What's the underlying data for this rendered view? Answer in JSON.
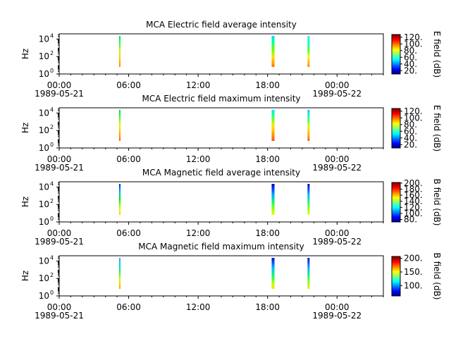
{
  "chart_data": [
    {
      "type": "heatmap",
      "title": "MCA  Electric field average intensity",
      "ylabel": "Hz",
      "y_scale": "log",
      "ylim": [
        1,
        40000
      ],
      "yticks": [
        {
          "v": 1,
          "b": "10",
          "e": "0"
        },
        {
          "v": 100,
          "b": "10",
          "e": "2"
        },
        {
          "v": 10000,
          "b": "10",
          "e": "4"
        }
      ],
      "xlim": [
        0,
        28
      ],
      "xticks": [
        {
          "v": 0,
          "label": "00:00",
          "date": "1989-05-21"
        },
        {
          "v": 6,
          "label": "06:00",
          "date": ""
        },
        {
          "v": 12,
          "label": "12:00",
          "date": ""
        },
        {
          "v": 18,
          "label": "18:00",
          "date": ""
        },
        {
          "v": 24,
          "label": "00:00",
          "date": "1989-05-22"
        }
      ],
      "colorbar": {
        "label": "E field (dB)",
        "min": 10,
        "max": 128,
        "ticks": [
          20,
          40,
          60,
          80,
          100,
          120
        ],
        "tick_labels": [
          "20.",
          "40.",
          "60.",
          "80.",
          "100.",
          "120."
        ]
      },
      "bursts": [
        {
          "start": 5.17,
          "end": 5.3,
          "colors": [
            "#ff8800",
            "#ffb000",
            "#ffd400",
            "#c8ff00",
            "#60ff20",
            "#20f080",
            "#00e060"
          ]
        },
        {
          "start": 18.35,
          "end": 18.6,
          "colors": [
            "#ff7000",
            "#ffb000",
            "#ffe000",
            "#80ff00",
            "#40ff40",
            "#00ffa0",
            "#00e0ff"
          ]
        },
        {
          "start": 21.45,
          "end": 21.63,
          "colors": [
            "#ff8000",
            "#ffc000",
            "#f0ff00",
            "#60ff20",
            "#20ff80",
            "#00ffd0",
            "#40e0ff"
          ]
        }
      ]
    },
    {
      "type": "heatmap",
      "title": "MCA  Electric field maximum intensity",
      "ylabel": "Hz",
      "y_scale": "log",
      "ylim": [
        1,
        40000
      ],
      "yticks": [
        {
          "v": 1,
          "b": "10",
          "e": "0"
        },
        {
          "v": 100,
          "b": "10",
          "e": "2"
        },
        {
          "v": 10000,
          "b": "10",
          "e": "4"
        }
      ],
      "xlim": [
        0,
        28
      ],
      "xticks": [
        {
          "v": 0,
          "label": "00:00",
          "date": "1989-05-21"
        },
        {
          "v": 6,
          "label": "06:00",
          "date": ""
        },
        {
          "v": 12,
          "label": "12:00",
          "date": ""
        },
        {
          "v": 18,
          "label": "18:00",
          "date": ""
        },
        {
          "v": 24,
          "label": "00:00",
          "date": "1989-05-22"
        }
      ],
      "colorbar": {
        "label": "E field (dB)",
        "min": 10,
        "max": 128,
        "ticks": [
          20,
          40,
          60,
          80,
          100,
          120
        ],
        "tick_labels": [
          "20.",
          "40.",
          "60.",
          "80.",
          "100.",
          "120."
        ]
      },
      "bursts": [
        {
          "start": 5.17,
          "end": 5.3,
          "colors": [
            "#ff6a00",
            "#ff9a00",
            "#ffc800",
            "#e0ff00",
            "#80ff00",
            "#20f060",
            "#00e040"
          ]
        },
        {
          "start": 18.35,
          "end": 18.6,
          "colors": [
            "#ff5000",
            "#ff8c00",
            "#ffc000",
            "#ffe800",
            "#80ff20",
            "#20ff90",
            "#00e8ff"
          ]
        },
        {
          "start": 21.45,
          "end": 21.63,
          "colors": [
            "#ff6000",
            "#ffa000",
            "#ffd000",
            "#c0ff00",
            "#40ff60",
            "#00ffc0",
            "#00c8ff"
          ]
        }
      ]
    },
    {
      "type": "heatmap",
      "title": "MCA  Magnetic field average intensity",
      "ylabel": "Hz",
      "y_scale": "log",
      "ylim": [
        1,
        40000
      ],
      "yticks": [
        {
          "v": 1,
          "b": "10",
          "e": "0"
        },
        {
          "v": 100,
          "b": "10",
          "e": "2"
        },
        {
          "v": 10000,
          "b": "10",
          "e": "4"
        }
      ],
      "xlim": [
        0,
        28
      ],
      "xticks": [
        {
          "v": 0,
          "label": "00:00",
          "date": "1989-05-21"
        },
        {
          "v": 6,
          "label": "06:00",
          "date": ""
        },
        {
          "v": 12,
          "label": "12:00",
          "date": ""
        },
        {
          "v": 18,
          "label": "18:00",
          "date": ""
        },
        {
          "v": 24,
          "label": "00:00",
          "date": "1989-05-22"
        }
      ],
      "colorbar": {
        "label": "B field (dB)",
        "min": 72,
        "max": 202,
        "ticks": [
          80,
          100,
          120,
          140,
          160,
          180,
          200
        ],
        "tick_labels": [
          "80.",
          "100.",
          "120.",
          "140.",
          "160.",
          "180.",
          "200."
        ]
      },
      "bursts": [
        {
          "start": 5.17,
          "end": 5.3,
          "colors": [
            "#ffd000",
            "#e0ff00",
            "#80ff00",
            "#00e000",
            "#00d0a0",
            "#0080ff",
            "#0020e0"
          ]
        },
        {
          "start": 18.35,
          "end": 18.6,
          "colors": [
            "#f0ff00",
            "#a0ff00",
            "#40ff40",
            "#00e0a0",
            "#00a0ff",
            "#0040ff",
            "#0000c0"
          ]
        },
        {
          "start": 21.45,
          "end": 21.63,
          "colors": [
            "#e8ff00",
            "#a0ff00",
            "#40ff40",
            "#00e0b0",
            "#00a8ff",
            "#0040ff",
            "#0000c0"
          ]
        }
      ]
    },
    {
      "type": "heatmap",
      "title": "MCA  Magnetic field maximum intensity",
      "ylabel": "Hz",
      "y_scale": "log",
      "ylim": [
        1,
        40000
      ],
      "yticks": [
        {
          "v": 1,
          "b": "10",
          "e": "0"
        },
        {
          "v": 100,
          "b": "10",
          "e": "2"
        },
        {
          "v": 10000,
          "b": "10",
          "e": "4"
        }
      ],
      "xlim": [
        0,
        28
      ],
      "xticks": [
        {
          "v": 0,
          "label": "00:00",
          "date": "1989-05-21"
        },
        {
          "v": 6,
          "label": "06:00",
          "date": ""
        },
        {
          "v": 12,
          "label": "12:00",
          "date": ""
        },
        {
          "v": 18,
          "label": "18:00",
          "date": ""
        },
        {
          "v": 24,
          "label": "00:00",
          "date": "1989-05-22"
        }
      ],
      "colorbar": {
        "label": "B field (dB)",
        "min": 62,
        "max": 207,
        "ticks": [
          100,
          150,
          200
        ],
        "tick_labels": [
          "100.",
          "150.",
          "200."
        ]
      },
      "bursts": [
        {
          "start": 5.17,
          "end": 5.3,
          "colors": [
            "#ffa000",
            "#ffd000",
            "#c0ff00",
            "#40ff20",
            "#00e0a0",
            "#00d0ff",
            "#40a0ff"
          ]
        },
        {
          "start": 18.35,
          "end": 18.6,
          "colors": [
            "#ffe000",
            "#c0ff00",
            "#40ff40",
            "#00f0a0",
            "#00c0ff",
            "#0060ff",
            "#0010d0"
          ]
        },
        {
          "start": 21.45,
          "end": 21.63,
          "colors": [
            "#ffe000",
            "#a0ff00",
            "#40ff40",
            "#00e0a0",
            "#00b0ff",
            "#0050ff",
            "#0010c0"
          ]
        }
      ]
    }
  ]
}
